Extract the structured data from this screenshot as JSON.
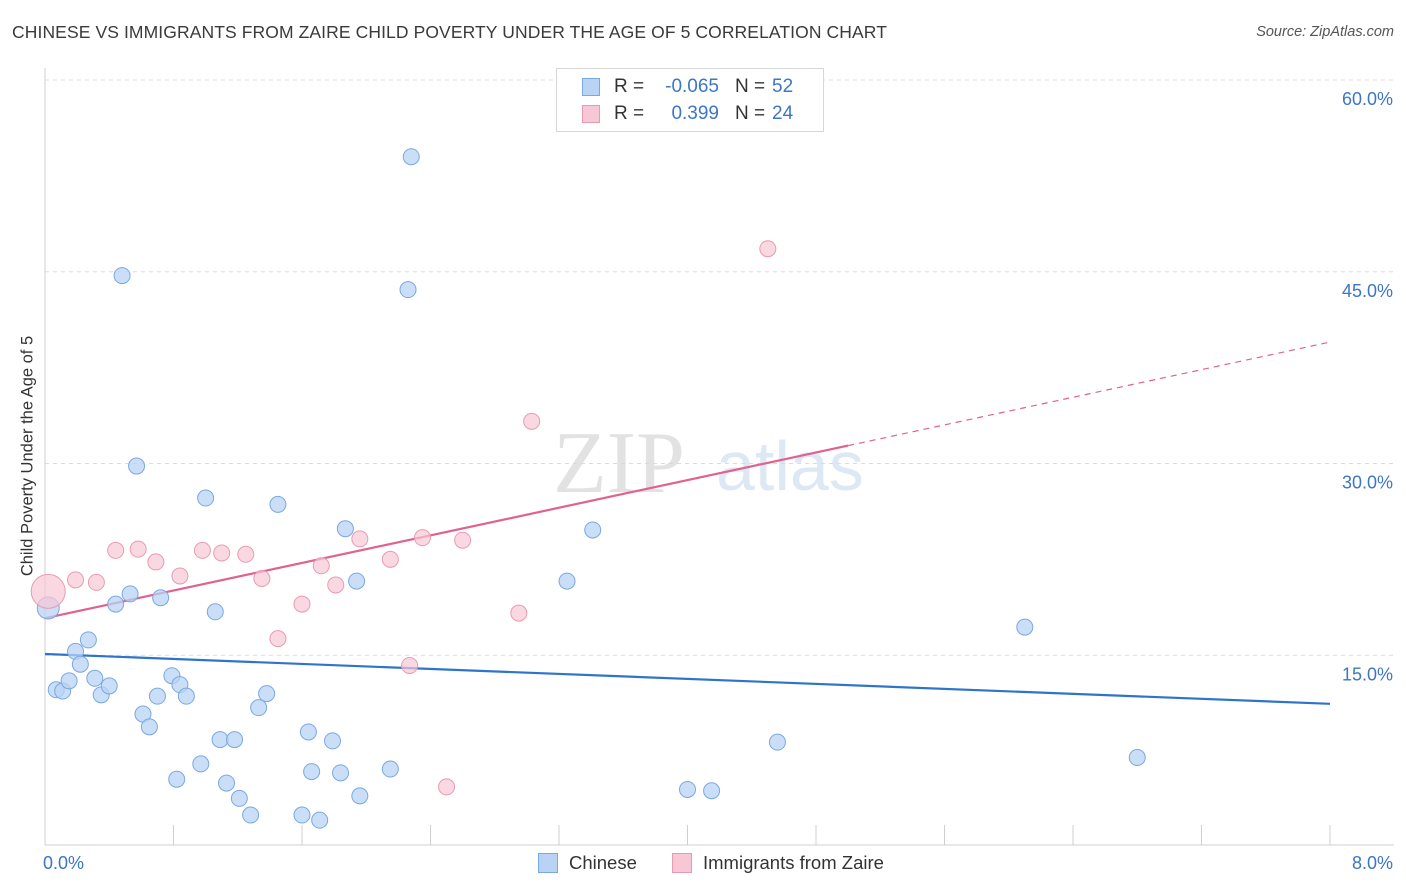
{
  "chart_data": {
    "type": "scatter",
    "title": "CHINESE VS IMMIGRANTS FROM ZAIRE CHILD POVERTY UNDER THE AGE OF 5 CORRELATION CHART",
    "source": "Source: ZipAtlas.com",
    "xlabel": "",
    "ylabel": "Child Poverty Under the Age of 5",
    "xlim": [
      0,
      8
    ],
    "ylim": [
      0,
      60
    ],
    "x_tick_labels": [
      "0.0%",
      "8.0%"
    ],
    "y_ticks": [
      15,
      30,
      45,
      60
    ],
    "y_tick_labels": [
      "15.0%",
      "30.0%",
      "45.0%",
      "60.0%"
    ],
    "grid": true,
    "watermark": "ZIPatlas",
    "legend_position": "bottom-center",
    "colors": {
      "chinese_fill": "#b8d3f4",
      "chinese_stroke": "#7aa8e0",
      "chinese_line": "#2f74cc",
      "zaire_fill": "#f8c7d6",
      "zaire_stroke": "#e99ab3",
      "zaire_line": "#e0628f",
      "axis_text": "#3c76c5"
    },
    "stats": [
      {
        "r_label": "R =",
        "r_value": "-0.065",
        "n_label": "N =",
        "n_value": "52"
      },
      {
        "r_label": "R =",
        "r_value": "0.399",
        "n_label": "N =",
        "n_value": "24"
      }
    ],
    "series": [
      {
        "name": "Chinese",
        "trend": {
          "x0": 0.0,
          "y0": 15.1,
          "x1": 8.0,
          "y1": 11.2
        },
        "points": [
          [
            0.02,
            18.7
          ],
          [
            0.07,
            12.3
          ],
          [
            0.11,
            12.2
          ],
          [
            0.15,
            13.0
          ],
          [
            0.19,
            15.3
          ],
          [
            0.22,
            14.3
          ],
          [
            0.27,
            16.2
          ],
          [
            0.31,
            13.2
          ],
          [
            0.35,
            11.9
          ],
          [
            0.4,
            12.6
          ],
          [
            0.44,
            19.0
          ],
          [
            0.53,
            19.8
          ],
          [
            0.48,
            44.7
          ],
          [
            0.57,
            29.8
          ],
          [
            0.61,
            10.4
          ],
          [
            0.65,
            9.4
          ],
          [
            0.7,
            11.8
          ],
          [
            0.72,
            19.5
          ],
          [
            0.79,
            13.4
          ],
          [
            0.82,
            5.3
          ],
          [
            0.84,
            12.7
          ],
          [
            0.88,
            11.8
          ],
          [
            0.97,
            6.5
          ],
          [
            1.0,
            27.3
          ],
          [
            1.06,
            18.4
          ],
          [
            1.09,
            8.4
          ],
          [
            1.13,
            5.0
          ],
          [
            1.18,
            8.4
          ],
          [
            1.21,
            3.8
          ],
          [
            1.28,
            2.5
          ],
          [
            1.33,
            10.9
          ],
          [
            1.38,
            12.0
          ],
          [
            1.45,
            26.8
          ],
          [
            1.6,
            2.5
          ],
          [
            1.64,
            9.0
          ],
          [
            1.66,
            5.9
          ],
          [
            1.71,
            2.1
          ],
          [
            1.79,
            8.3
          ],
          [
            1.84,
            5.8
          ],
          [
            1.87,
            24.9
          ],
          [
            1.94,
            20.8
          ],
          [
            1.96,
            4.0
          ],
          [
            2.15,
            6.1
          ],
          [
            2.26,
            43.6
          ],
          [
            2.28,
            54.0
          ],
          [
            3.25,
            20.8
          ],
          [
            3.41,
            24.8
          ],
          [
            4.0,
            4.5
          ],
          [
            4.15,
            4.4
          ],
          [
            4.56,
            8.2
          ],
          [
            6.1,
            17.2
          ],
          [
            6.8,
            7.0
          ]
        ]
      },
      {
        "name": "Immigrants from Zaire",
        "trend": {
          "x0": 0.0,
          "y0": 17.9,
          "x1": 5.0,
          "y1": 31.4
        },
        "trend_dashed": {
          "x0": 5.0,
          "y0": 31.4,
          "x1": 8.0,
          "y1": 39.5
        },
        "points": [
          [
            0.02,
            20.0
          ],
          [
            0.19,
            20.9
          ],
          [
            0.32,
            20.7
          ],
          [
            0.44,
            23.2
          ],
          [
            0.58,
            23.3
          ],
          [
            0.69,
            22.3
          ],
          [
            0.84,
            21.2
          ],
          [
            0.98,
            23.2
          ],
          [
            1.1,
            23.0
          ],
          [
            1.25,
            22.9
          ],
          [
            1.35,
            21.0
          ],
          [
            1.45,
            16.3
          ],
          [
            1.6,
            19.0
          ],
          [
            1.72,
            22.0
          ],
          [
            1.81,
            20.5
          ],
          [
            1.96,
            24.1
          ],
          [
            2.15,
            22.5
          ],
          [
            2.35,
            24.2
          ],
          [
            2.27,
            14.2
          ],
          [
            2.5,
            4.7
          ],
          [
            2.6,
            24.0
          ],
          [
            2.95,
            18.3
          ],
          [
            3.03,
            33.3
          ],
          [
            4.5,
            46.8
          ]
        ]
      }
    ]
  }
}
